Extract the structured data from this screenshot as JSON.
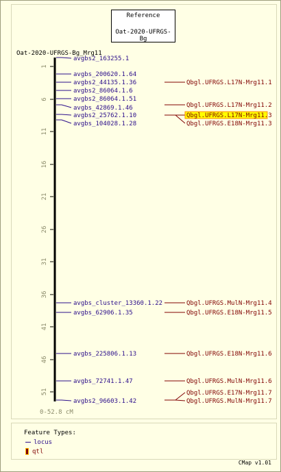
{
  "reference": {
    "title": "Reference",
    "map_set": "Oat-2020-UFRGS-Bg"
  },
  "map": {
    "name": "Oat-2020-UFRGS-Bg_Mrg11",
    "range_label": "0-52.8 cM"
  },
  "axis": {
    "ticks": [
      "1",
      "6",
      "11",
      "16",
      "21",
      "26",
      "31",
      "36",
      "41",
      "46",
      "51"
    ]
  },
  "loci": [
    {
      "label": "avgbs2_163255.1"
    },
    {
      "label": "avgbs_200620.1.64"
    },
    {
      "label": "avgbs2_44135.1.36"
    },
    {
      "label": "avgbs2_86064.1.6"
    },
    {
      "label": "avgbs2_86064.1.51"
    },
    {
      "label": "avgbs_42869.1.46"
    },
    {
      "label": "avgbs2_25762.1.10"
    },
    {
      "label": "avgbs_104028.1.28"
    },
    {
      "label": "avgbs_cluster_13360.1.22"
    },
    {
      "label": "avgbs_62906.1.35"
    },
    {
      "label": "avgbs_225806.1.13"
    },
    {
      "label": "avgbs_72741.1.47"
    },
    {
      "label": "avgbs2_96603.1.42"
    }
  ],
  "qtls": [
    {
      "label": "Qbgl.UFRGS.L17N-Mrg11.1",
      "highlighted": false
    },
    {
      "label": "Qbgl.UFRGS.L17N-Mrg11.2",
      "highlighted": false
    },
    {
      "label": "Qbgl.UFRGS.L17N-Mrg11.3",
      "highlighted": true
    },
    {
      "label": "Qbgl.UFRGS.E18N-Mrg11.3",
      "highlighted": false
    },
    {
      "label": "Qbgl.UFRGS.MulN-Mrg11.4",
      "highlighted": false
    },
    {
      "label": "Qbgl.UFRGS.E18N-Mrg11.5",
      "highlighted": false
    },
    {
      "label": "Qbgl.UFRGS.E18N-Mrg11.6",
      "highlighted": false
    },
    {
      "label": "Qbgl.UFRGS.MulN-Mrg11.6",
      "highlighted": false
    },
    {
      "label": "Qbgl.UFRGS.E17N-Mrg11.7",
      "highlighted": false
    },
    {
      "label": "Qbgl.UFRGS.MulN-Mrg11.7",
      "highlighted": false
    }
  ],
  "legend": {
    "title": "Feature Types:",
    "locus": "locus",
    "qtl": "qtl"
  },
  "footer": "CMap v1.01",
  "colors": {
    "locus": "#2a0c8a",
    "qtl": "#800000",
    "highlight": "#ffff00",
    "highlight_border": "#ff8c00"
  }
}
